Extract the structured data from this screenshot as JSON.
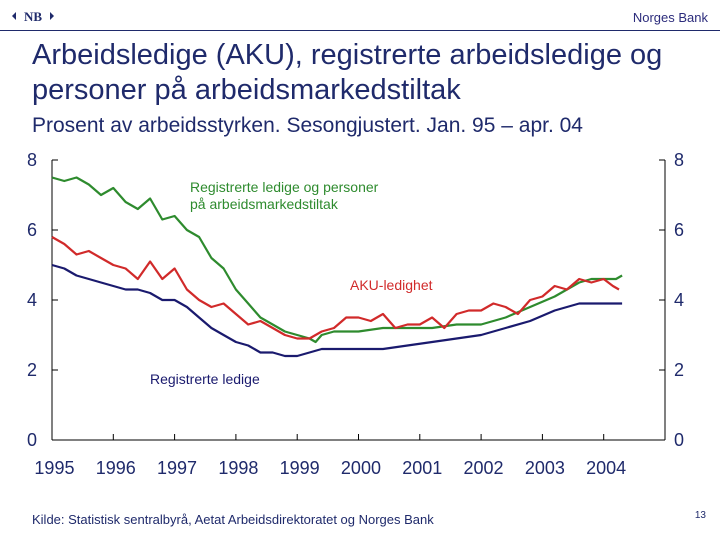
{
  "header": {
    "logo_text": "NB",
    "brand": "Norges Bank"
  },
  "title": "Arbeidsledige (AKU), registrerte arbeidsledige og personer på arbeidsmarkedstiltak",
  "subtitle": "Prosent av arbeidsstyrken. Sesongjustert. Jan. 95 – apr. 04",
  "footer": {
    "source": "Kilde: Statistisk sentralbyrå, Aetat Arbeidsdirektoratet og Norges Bank",
    "page_number": "13"
  },
  "chart_data": {
    "type": "line",
    "ylim": [
      0,
      8
    ],
    "yticks": [
      0,
      2,
      4,
      6,
      8
    ],
    "y_tick_labels": [
      "0",
      "2",
      "4",
      "6",
      "8"
    ],
    "x_start": 1995.0,
    "x_end": 2005.0,
    "x_tick_labels": [
      "1995",
      "1996",
      "1997",
      "1998",
      "1999",
      "2000",
      "2001",
      "2002",
      "2003",
      "2004"
    ],
    "grid": false,
    "series": [
      {
        "name": "Registrerte ledige og personer på arbeidsmarkedstiltak",
        "label_lines": [
          "Registrerte ledige og personer",
          "på arbeidsmarkedstiltak"
        ],
        "color": "#2e8b2e",
        "points": [
          [
            1995.0,
            7.5
          ],
          [
            1995.2,
            7.4
          ],
          [
            1995.4,
            7.5
          ],
          [
            1995.6,
            7.3
          ],
          [
            1995.8,
            7.0
          ],
          [
            1996.0,
            7.2
          ],
          [
            1996.2,
            6.8
          ],
          [
            1996.4,
            6.6
          ],
          [
            1996.6,
            6.9
          ],
          [
            1996.8,
            6.3
          ],
          [
            1997.0,
            6.4
          ],
          [
            1997.2,
            6.0
          ],
          [
            1997.4,
            5.8
          ],
          [
            1997.6,
            5.2
          ],
          [
            1997.8,
            4.9
          ],
          [
            1998.0,
            4.3
          ],
          [
            1998.2,
            3.9
          ],
          [
            1998.4,
            3.5
          ],
          [
            1998.6,
            3.3
          ],
          [
            1998.8,
            3.1
          ],
          [
            1999.0,
            3.0
          ],
          [
            1999.2,
            2.9
          ],
          [
            1999.3,
            2.8
          ],
          [
            1999.4,
            3.0
          ],
          [
            1999.6,
            3.1
          ],
          [
            2000.0,
            3.1
          ],
          [
            2000.4,
            3.2
          ],
          [
            2000.8,
            3.2
          ],
          [
            2001.2,
            3.2
          ],
          [
            2001.6,
            3.3
          ],
          [
            2002.0,
            3.3
          ],
          [
            2002.4,
            3.5
          ],
          [
            2002.8,
            3.8
          ],
          [
            2003.2,
            4.1
          ],
          [
            2003.6,
            4.5
          ],
          [
            2003.8,
            4.6
          ],
          [
            2004.0,
            4.6
          ],
          [
            2004.2,
            4.6
          ],
          [
            2004.3,
            4.7
          ]
        ]
      },
      {
        "name": "AKU-ledighet",
        "label_lines": [
          "AKU-ledighet"
        ],
        "color": "#d12a2a",
        "points": [
          [
            1995.0,
            5.8
          ],
          [
            1995.2,
            5.6
          ],
          [
            1995.4,
            5.3
          ],
          [
            1995.6,
            5.4
          ],
          [
            1995.8,
            5.2
          ],
          [
            1996.0,
            5.0
          ],
          [
            1996.2,
            4.9
          ],
          [
            1996.4,
            4.6
          ],
          [
            1996.6,
            5.1
          ],
          [
            1996.8,
            4.6
          ],
          [
            1997.0,
            4.9
          ],
          [
            1997.2,
            4.3
          ],
          [
            1997.4,
            4.0
          ],
          [
            1997.6,
            3.8
          ],
          [
            1997.8,
            3.9
          ],
          [
            1998.0,
            3.6
          ],
          [
            1998.2,
            3.3
          ],
          [
            1998.4,
            3.4
          ],
          [
            1998.6,
            3.2
          ],
          [
            1998.8,
            3.0
          ],
          [
            1999.0,
            2.9
          ],
          [
            1999.2,
            2.9
          ],
          [
            1999.4,
            3.1
          ],
          [
            1999.6,
            3.2
          ],
          [
            1999.8,
            3.5
          ],
          [
            2000.0,
            3.5
          ],
          [
            2000.2,
            3.4
          ],
          [
            2000.4,
            3.6
          ],
          [
            2000.6,
            3.2
          ],
          [
            2000.8,
            3.3
          ],
          [
            2001.0,
            3.3
          ],
          [
            2001.2,
            3.5
          ],
          [
            2001.4,
            3.2
          ],
          [
            2001.6,
            3.6
          ],
          [
            2001.8,
            3.7
          ],
          [
            2002.0,
            3.7
          ],
          [
            2002.2,
            3.9
          ],
          [
            2002.4,
            3.8
          ],
          [
            2002.6,
            3.6
          ],
          [
            2002.8,
            4.0
          ],
          [
            2003.0,
            4.1
          ],
          [
            2003.2,
            4.4
          ],
          [
            2003.4,
            4.3
          ],
          [
            2003.6,
            4.6
          ],
          [
            2003.8,
            4.5
          ],
          [
            2004.0,
            4.6
          ],
          [
            2004.15,
            4.4
          ],
          [
            2004.25,
            4.3
          ]
        ]
      },
      {
        "name": "Registrerte ledige",
        "label_lines": [
          "Registrerte ledige"
        ],
        "color": "#1a1a6e",
        "points": [
          [
            1995.0,
            5.0
          ],
          [
            1995.2,
            4.9
          ],
          [
            1995.4,
            4.7
          ],
          [
            1995.6,
            4.6
          ],
          [
            1995.8,
            4.5
          ],
          [
            1996.0,
            4.4
          ],
          [
            1996.2,
            4.3
          ],
          [
            1996.4,
            4.3
          ],
          [
            1996.6,
            4.2
          ],
          [
            1996.8,
            4.0
          ],
          [
            1997.0,
            4.0
          ],
          [
            1997.2,
            3.8
          ],
          [
            1997.4,
            3.5
          ],
          [
            1997.6,
            3.2
          ],
          [
            1997.8,
            3.0
          ],
          [
            1998.0,
            2.8
          ],
          [
            1998.2,
            2.7
          ],
          [
            1998.4,
            2.5
          ],
          [
            1998.6,
            2.5
          ],
          [
            1998.8,
            2.4
          ],
          [
            1999.0,
            2.4
          ],
          [
            1999.2,
            2.5
          ],
          [
            1999.4,
            2.6
          ],
          [
            1999.6,
            2.6
          ],
          [
            1999.8,
            2.6
          ],
          [
            2000.0,
            2.6
          ],
          [
            2000.4,
            2.6
          ],
          [
            2000.8,
            2.7
          ],
          [
            2001.2,
            2.8
          ],
          [
            2001.6,
            2.9
          ],
          [
            2002.0,
            3.0
          ],
          [
            2002.4,
            3.2
          ],
          [
            2002.8,
            3.4
          ],
          [
            2003.2,
            3.7
          ],
          [
            2003.6,
            3.9
          ],
          [
            2004.0,
            3.9
          ],
          [
            2004.2,
            3.9
          ],
          [
            2004.3,
            3.9
          ]
        ]
      }
    ],
    "annotations": [
      {
        "series": 0,
        "lines": [
          "Registrerte ledige og personer",
          "på arbeidsmarkedstiltak"
        ]
      },
      {
        "series": 1,
        "lines": [
          "AKU-ledighet"
        ]
      },
      {
        "series": 2,
        "lines": [
          "Registrerte ledige"
        ]
      }
    ]
  }
}
